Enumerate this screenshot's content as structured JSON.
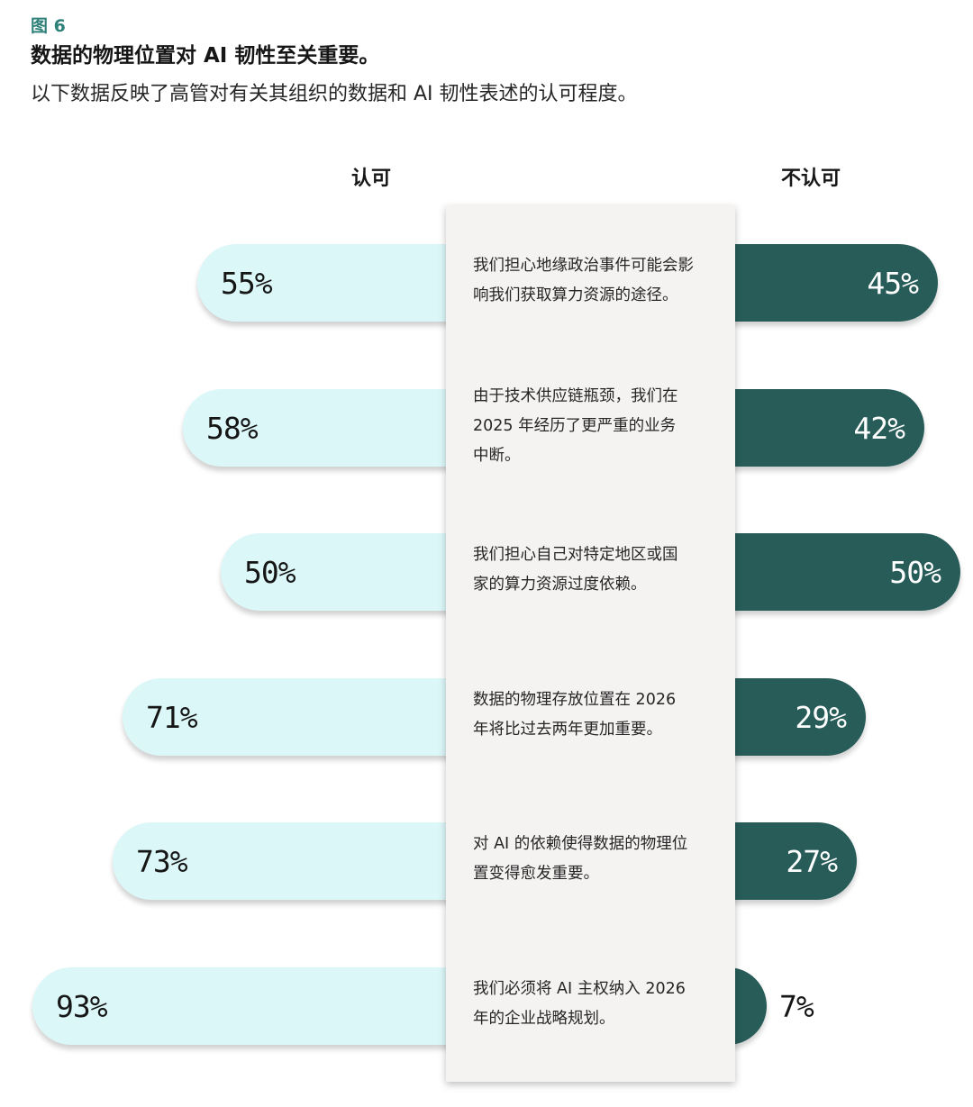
{
  "figure_label": "图 6",
  "title": "数据的物理位置对 AI 韧性至关重要。",
  "subtitle": "以下数据反映了高管对有关其组织的数据和 AI 韧性表述的认可程度。",
  "colors": {
    "agree": "#dcf7f8",
    "disagree": "#275c59",
    "panel": "#f5f3f1",
    "accent": "#2f8079"
  },
  "chart_data": {
    "type": "bar",
    "orientation": "diverging-horizontal",
    "title": "数据的物理位置对 AI 韧性至关重要。",
    "subtitle": "以下数据反映了高管对有关其组织的数据和 AI 韧性表述的认可程度。",
    "legend": [
      "认可",
      "不认可"
    ],
    "categories": [
      "我们担心地缘政治事件可能会影响我们获取算力资源的途径。",
      "由于技术供应链瓶颈，我们在 2025 年经历了更严重的业务中断。",
      "我们担心自己对特定地区或国家的算力资源过度依赖。",
      "数据的物理存放位置在 2026 年将比过去两年更加重要。",
      "对 AI 的依赖使得数据的物理位置变得愈发重要。",
      "我们必须将 AI 主权纳入 2026 年的企业战略规划。"
    ],
    "series": [
      {
        "name": "认可",
        "values": [
          55,
          58,
          50,
          71,
          73,
          93
        ],
        "labels": [
          "55%",
          "58%",
          "50%",
          "71%",
          "73%",
          "93%"
        ]
      },
      {
        "name": "不认可",
        "values": [
          45,
          42,
          50,
          29,
          27,
          7
        ],
        "labels": [
          "45%",
          "42%",
          "50%",
          "29%",
          "27%",
          "7%"
        ]
      }
    ],
    "statement_lines": [
      [
        "我们担心地缘政治事件可能会影",
        "响我们获取算力资源的途径。"
      ],
      [
        "由于技术供应链瓶颈，我们在",
        "2025 年经历了更严重的业务",
        "中断。"
      ],
      [
        "我们担心自己对特定地区或国",
        "家的算力资源过度依赖。"
      ],
      [
        "数据的物理存放位置在 2026",
        "年将比过去两年更加重要。"
      ],
      [
        "对 AI 的依赖使得数据的物理位",
        "置变得愈发重要。"
      ],
      [
        "我们必须将 AI 主权纳入 2026",
        "年的企业战略规划。"
      ]
    ],
    "ylim": [
      0,
      100
    ]
  }
}
